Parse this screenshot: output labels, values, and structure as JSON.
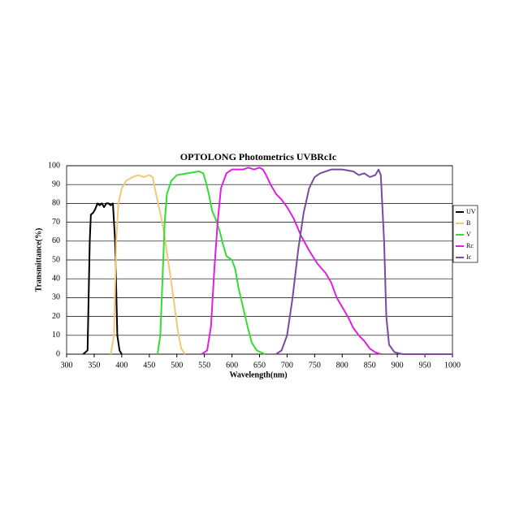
{
  "chart_data": {
    "type": "line",
    "title": "OPTOLONG Photometrics UVBRcIc",
    "xlabel": "Wavelength(nm)",
    "ylabel": "Transmittance(%)",
    "xlim": [
      300,
      1000
    ],
    "ylim": [
      0,
      100
    ],
    "xticks": [
      300,
      350,
      400,
      450,
      500,
      550,
      600,
      650,
      700,
      750,
      800,
      850,
      900,
      950,
      1000
    ],
    "yticks": [
      0,
      10,
      20,
      30,
      40,
      50,
      60,
      70,
      80,
      90,
      100
    ],
    "grid": true,
    "legend": "right",
    "series": [
      {
        "name": "UV",
        "color": "#000000",
        "x": [
          330,
          338,
          342,
          344,
          348,
          352,
          356,
          360,
          364,
          368,
          372,
          376,
          380,
          384,
          388,
          392,
          396,
          400
        ],
        "values": [
          0,
          2,
          60,
          74,
          75,
          77,
          80,
          79,
          80,
          78,
          80,
          80,
          79,
          80,
          60,
          10,
          2,
          0
        ]
      },
      {
        "name": "B",
        "color": "#f0c878",
        "x": [
          380,
          386,
          390,
          394,
          400,
          408,
          420,
          430,
          440,
          450,
          456,
          460,
          466,
          472,
          478,
          484,
          490,
          496,
          502,
          508,
          515
        ],
        "values": [
          0,
          10,
          60,
          80,
          88,
          92,
          94,
          95,
          94,
          95,
          94,
          88,
          80,
          72,
          62,
          50,
          38,
          25,
          12,
          3,
          0
        ]
      },
      {
        "name": "V",
        "color": "#33dd33",
        "x": [
          465,
          470,
          474,
          478,
          482,
          490,
          500,
          520,
          540,
          548,
          552,
          558,
          564,
          570,
          578,
          584,
          590,
          600,
          606,
          612,
          620,
          628,
          636,
          645,
          660
        ],
        "values": [
          0,
          10,
          40,
          70,
          85,
          92,
          95,
          96,
          97,
          96,
          92,
          85,
          76,
          72,
          65,
          58,
          52,
          50,
          45,
          35,
          25,
          15,
          6,
          2,
          0
        ]
      },
      {
        "name": "Rc",
        "color": "#e020e0",
        "x": [
          545,
          555,
          562,
          568,
          574,
          580,
          590,
          600,
          620,
          630,
          640,
          650,
          656,
          662,
          670,
          680,
          690,
          700,
          712,
          725,
          740,
          755,
          770,
          780,
          790,
          800,
          810,
          820,
          830,
          840,
          850,
          860,
          870
        ],
        "values": [
          0,
          2,
          15,
          45,
          70,
          88,
          96,
          98,
          98,
          99,
          98,
          99,
          98,
          95,
          90,
          85,
          82,
          78,
          72,
          63,
          55,
          48,
          43,
          38,
          30,
          25,
          20,
          14,
          10,
          7,
          3,
          1,
          0
        ]
      },
      {
        "name": "Ic",
        "color": "#7a4aa0",
        "x": [
          680,
          690,
          700,
          710,
          720,
          730,
          740,
          750,
          760,
          780,
          800,
          820,
          830,
          840,
          850,
          860,
          866,
          870,
          876,
          880,
          885,
          895,
          910,
          1000
        ],
        "values": [
          0,
          2,
          10,
          30,
          55,
          75,
          88,
          94,
          96,
          98,
          98,
          97,
          95,
          96,
          94,
          95,
          98,
          95,
          60,
          20,
          5,
          1,
          0,
          0
        ]
      }
    ]
  }
}
